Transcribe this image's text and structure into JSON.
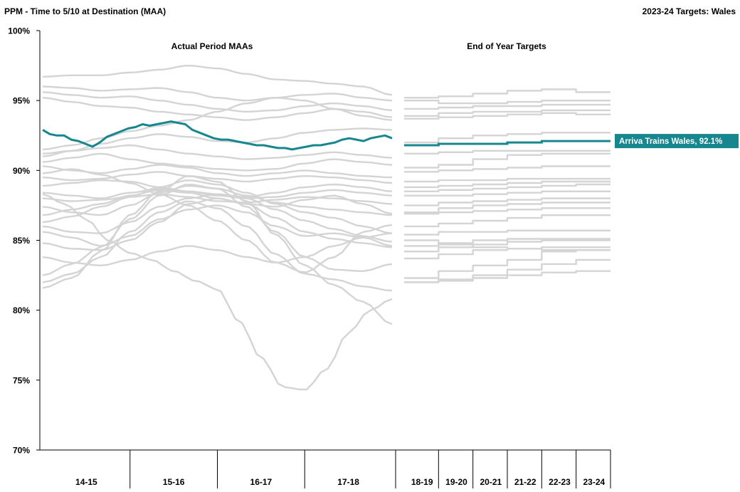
{
  "chart_data": {
    "type": "line",
    "title": "PPM - Time to 5/10 at Destination (MAA)",
    "subtitle": "2023-24 Targets: Wales",
    "panel_labels": [
      "Actual Period MAAs",
      "End of Year Targets"
    ],
    "ylim": [
      70,
      100
    ],
    "y_ticks": [
      70,
      75,
      80,
      85,
      90,
      95,
      100
    ],
    "y_tick_labels": [
      "70%",
      "75%",
      "80%",
      "85%",
      "90%",
      "95%",
      "100%"
    ],
    "actual_years": [
      "14-15",
      "15-16",
      "16-17",
      "17-18"
    ],
    "periods_per_year": 13,
    "target_years": [
      "18-19",
      "19-20",
      "20-21",
      "21-22",
      "22-23",
      "23-24"
    ],
    "highlight": {
      "name": "Arriva Trains Wales",
      "label": "Arriva Trains Wales, 92.1%",
      "color": "#17878f",
      "actual": [
        92.9,
        92.6,
        92.5,
        92.5,
        92.2,
        92.1,
        91.9,
        91.7,
        92.0,
        92.4,
        92.6,
        92.8,
        93.0,
        93.1,
        93.3,
        93.2,
        93.3,
        93.4,
        93.5,
        93.4,
        93.3,
        92.9,
        92.7,
        92.5,
        92.3,
        92.2,
        92.2,
        92.1,
        92.0,
        91.9,
        91.8,
        91.8,
        91.7,
        91.6,
        91.6,
        91.5,
        91.6,
        91.7,
        91.8,
        91.8,
        91.9,
        92.0,
        92.2,
        92.3,
        92.2,
        92.1,
        92.3,
        92.4,
        92.5,
        92.3
      ],
      "targets": [
        91.8,
        91.9,
        91.9,
        92.0,
        92.1,
        92.1
      ]
    },
    "background_color": "#d4d4d4",
    "background_series": [
      {
        "actual_knots": [
          96.7,
          96.8,
          96.8,
          97.0,
          97.2,
          97.5,
          97.3,
          96.9,
          96.5,
          96.4,
          96.2,
          96.0,
          95.4
        ],
        "targets": [
          95.2,
          95.3,
          95.5,
          95.7,
          95.8,
          95.6
        ]
      },
      {
        "actual_knots": [
          96.0,
          95.9,
          95.7,
          95.8,
          95.9,
          95.6,
          95.2,
          95.0,
          95.2,
          95.4,
          95.5,
          95.2,
          95.0
        ],
        "targets": [
          95.0,
          94.8,
          94.8,
          94.9,
          95.0,
          95.0
        ]
      },
      {
        "actual_knots": [
          95.6,
          95.4,
          95.2,
          95.3,
          95.0,
          94.7,
          94.4,
          94.2,
          94.3,
          94.6,
          94.8,
          94.6,
          94.3
        ],
        "targets": [
          94.4,
          94.5,
          94.6,
          94.6,
          94.7,
          94.7
        ]
      },
      {
        "actual_knots": [
          95.2,
          94.9,
          94.6,
          94.5,
          94.2,
          94.0,
          93.8,
          93.6,
          93.8,
          94.1,
          94.4,
          94.2,
          93.8
        ],
        "targets": [
          93.9,
          94.1,
          94.2,
          94.2,
          94.3,
          94.3
        ]
      },
      {
        "actual_knots": [
          91.5,
          91.8,
          92.3,
          92.8,
          93.2,
          93.6,
          94.2,
          94.8,
          95.2,
          95.0,
          94.4,
          93.9,
          93.6
        ],
        "targets": [
          93.7,
          93.8,
          93.9,
          94.0,
          94.1,
          94.0
        ]
      },
      {
        "actual_knots": [
          91.0,
          91.4,
          91.9,
          92.3,
          92.6,
          92.4,
          92.1,
          92.0,
          92.3,
          92.7,
          92.9,
          93.0,
          92.9
        ],
        "targets": [
          92.0,
          92.3,
          92.5,
          92.6,
          92.7,
          92.7
        ]
      },
      {
        "actual_knots": [
          91.2,
          91.4,
          91.6,
          91.8,
          91.5,
          91.2,
          91.0,
          90.8,
          90.9,
          91.1,
          91.3,
          91.1,
          90.9
        ],
        "targets": [
          91.2,
          91.3,
          91.4,
          91.4,
          91.4,
          91.4
        ]
      },
      {
        "actual_knots": [
          90.6,
          90.9,
          91.2,
          90.8,
          90.5,
          90.3,
          90.1,
          90.0,
          90.1,
          90.5,
          90.8,
          90.6,
          90.4
        ],
        "targets": [
          90.2,
          90.4,
          90.8,
          91.1,
          91.2,
          91.2
        ]
      },
      {
        "actual_knots": [
          90.3,
          90.0,
          89.8,
          90.1,
          90.4,
          90.2,
          89.8,
          89.6,
          89.8,
          90.0,
          89.8,
          89.6,
          89.5
        ],
        "targets": [
          89.9,
          90.0,
          90.1,
          90.2,
          90.3,
          90.3
        ]
      },
      {
        "actual_knots": [
          89.5,
          89.3,
          89.4,
          89.7,
          89.9,
          89.6,
          89.4,
          89.2,
          89.4,
          89.6,
          89.5,
          89.3,
          89.1
        ],
        "targets": [
          89.2,
          89.3,
          89.3,
          89.4,
          89.4,
          89.4
        ]
      },
      {
        "actual_knots": [
          88.9,
          89.1,
          89.3,
          89.2,
          88.8,
          88.5,
          88.3,
          88.1,
          88.4,
          88.8,
          89.0,
          88.8,
          88.5
        ],
        "targets": [
          88.8,
          88.9,
          89.0,
          89.1,
          89.2,
          89.2
        ]
      },
      {
        "actual_knots": [
          88.4,
          88.2,
          88.0,
          88.4,
          88.7,
          88.5,
          88.2,
          88.0,
          88.1,
          88.4,
          88.6,
          88.4,
          88.2
        ],
        "targets": [
          88.5,
          88.6,
          88.7,
          88.8,
          88.9,
          89.0
        ]
      },
      {
        "actual_knots": [
          88.0,
          87.8,
          87.9,
          88.1,
          88.3,
          88.1,
          87.8,
          87.7,
          87.9,
          88.1,
          88.0,
          87.8,
          87.6
        ],
        "targets": [
          88.2,
          88.2,
          88.3,
          88.4,
          88.5,
          88.5
        ]
      },
      {
        "actual_knots": [
          87.4,
          87.0,
          86.8,
          87.5,
          88.4,
          88.9,
          88.7,
          88.2,
          87.7,
          87.4,
          87.2,
          87.0,
          86.8
        ],
        "targets": [
          87.5,
          87.7,
          87.8,
          87.9,
          88.0,
          88.0
        ]
      },
      {
        "actual_knots": [
          86.8,
          87.2,
          87.6,
          88.2,
          88.6,
          88.4,
          88.0,
          87.6,
          87.4,
          87.9,
          88.2,
          87.6,
          86.9
        ],
        "targets": [
          87.0,
          87.3,
          87.5,
          87.6,
          87.7,
          87.7
        ]
      },
      {
        "actual_knots": [
          86.3,
          86.7,
          87.4,
          88.1,
          88.8,
          89.3,
          89.0,
          88.4,
          87.6,
          87.0,
          86.6,
          86.0,
          85.5
        ],
        "targets": [
          86.9,
          87.0,
          87.1,
          87.2,
          87.3,
          87.3
        ]
      },
      {
        "actual_knots": [
          86.0,
          85.6,
          85.5,
          86.3,
          87.4,
          88.0,
          88.3,
          88.0,
          87.2,
          86.4,
          85.8,
          85.3,
          84.9
        ],
        "targets": [
          86.0,
          86.2,
          86.4,
          86.6,
          86.8,
          86.8
        ]
      },
      {
        "actual_knots": [
          85.6,
          85.2,
          84.6,
          85.3,
          86.5,
          87.2,
          87.5,
          87.0,
          86.0,
          85.3,
          85.5,
          85.2,
          84.6
        ],
        "targets": [
          85.4,
          85.6,
          85.6,
          85.7,
          85.7,
          85.7
        ]
      },
      {
        "actual_knots": [
          84.8,
          84.4,
          84.3,
          85.0,
          86.3,
          87.6,
          88.0,
          87.6,
          86.6,
          85.6,
          85.1,
          84.8,
          84.5
        ],
        "targets": [
          84.6,
          84.8,
          85.0,
          85.1,
          85.1,
          85.1
        ]
      },
      {
        "actual_knots": [
          83.8,
          83.4,
          83.2,
          83.6,
          84.2,
          84.6,
          84.3,
          83.8,
          83.4,
          83.8,
          84.6,
          85.2,
          85.5
        ],
        "targets": [
          84.2,
          84.5,
          84.7,
          84.9,
          85.0,
          85.0
        ]
      },
      {
        "actual_knots": [
          82.5,
          83.3,
          84.5,
          86.5,
          88.2,
          89.0,
          88.7,
          87.4,
          85.6,
          83.8,
          82.9,
          82.8,
          83.3
        ],
        "targets": [
          83.7,
          84.0,
          84.3,
          84.4,
          84.5,
          84.5
        ]
      },
      {
        "actual_knots": [
          82.0,
          82.6,
          83.8,
          85.6,
          87.0,
          87.8,
          87.3,
          86.0,
          84.0,
          82.6,
          82.2,
          81.7,
          81.4
        ],
        "targets": [
          82.3,
          82.8,
          83.2,
          83.6,
          84.2,
          84.3
        ]
      },
      {
        "actual_knots": [
          81.6,
          82.3,
          84.2,
          86.8,
          88.5,
          89.6,
          89.2,
          87.8,
          85.4,
          83.2,
          81.8,
          80.6,
          79.0
        ],
        "targets": [
          82.0,
          82.2,
          82.5,
          82.9,
          83.3,
          83.6
        ]
      },
      {
        "actual_knots": [
          89.8,
          90.1,
          89.7,
          89.1,
          88.3,
          87.5,
          86.4,
          85.0,
          83.4,
          82.7,
          83.8,
          85.6,
          86.1
        ],
        "targets": [
          85.0,
          84.7,
          84.5,
          84.4,
          84.3,
          84.3
        ]
      },
      {
        "actual_knots": [
          88.3,
          87.6,
          86.5,
          85.0,
          84.1,
          83.6,
          82.8,
          82.1,
          81.5,
          79.2,
          76.6,
          74.5,
          74.3,
          75.8,
          78.4,
          80.0,
          80.8
        ],
        "targets": [
          82.0,
          82.1,
          82.3,
          82.5,
          82.7,
          82.8
        ]
      }
    ]
  }
}
